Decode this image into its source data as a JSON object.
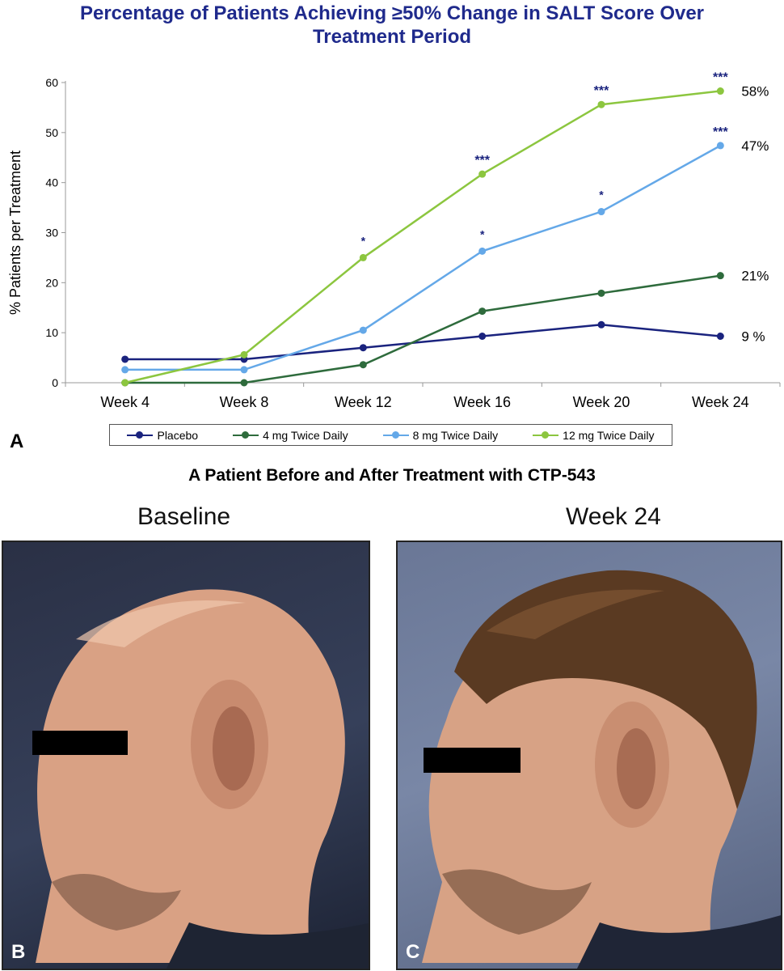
{
  "chart_data": {
    "type": "line",
    "title_line1": "Percentage of Patients Achieving ≥50% Change in SALT Score Over",
    "title_line2": "Treatment Period",
    "ylabel": "% Patients per Treatment",
    "xlabel": "",
    "ylim": [
      0,
      60
    ],
    "yticks": [
      "0",
      "10",
      "20",
      "30",
      "40",
      "50",
      "60"
    ],
    "categories": [
      "Week 4",
      "Week 8",
      "Week 12",
      "Week 16",
      "Week 20",
      "Week 24"
    ],
    "grid": false,
    "legend_position": "bottom",
    "series": [
      {
        "name": "Placebo",
        "color": "#1a237e",
        "values": [
          4.7,
          4.7,
          7.0,
          9.3,
          11.6,
          9.3
        ],
        "end_label": "9 %",
        "significance": [
          "",
          "",
          "",
          "",
          "",
          ""
        ]
      },
      {
        "name": "4 mg Twice Daily",
        "color": "#2e6b3c",
        "values": [
          0,
          0,
          3.6,
          14.3,
          17.9,
          21.4
        ],
        "end_label": "21%",
        "significance": [
          "",
          "",
          "",
          "",
          "",
          ""
        ]
      },
      {
        "name": "8 mg Twice Daily",
        "color": "#64a8e8",
        "values": [
          2.6,
          2.6,
          10.5,
          26.3,
          34.2,
          47.4
        ],
        "end_label": "47%",
        "significance": [
          "",
          "",
          "",
          "*",
          "*",
          "***"
        ]
      },
      {
        "name": "12 mg Twice Daily",
        "color": "#8cc63f",
        "values": [
          0,
          5.6,
          25.0,
          41.7,
          55.6,
          58.3
        ],
        "end_label": "58%",
        "significance": [
          "",
          "",
          "*",
          "***",
          "***",
          "***"
        ]
      }
    ]
  },
  "panel_labels": {
    "a": "A",
    "b": "B",
    "c": "C"
  },
  "subtitle": "A Patient Before and After Treatment with CTP-543",
  "photos": {
    "baseline_caption": "Baseline",
    "week24_caption": "Week 24"
  }
}
